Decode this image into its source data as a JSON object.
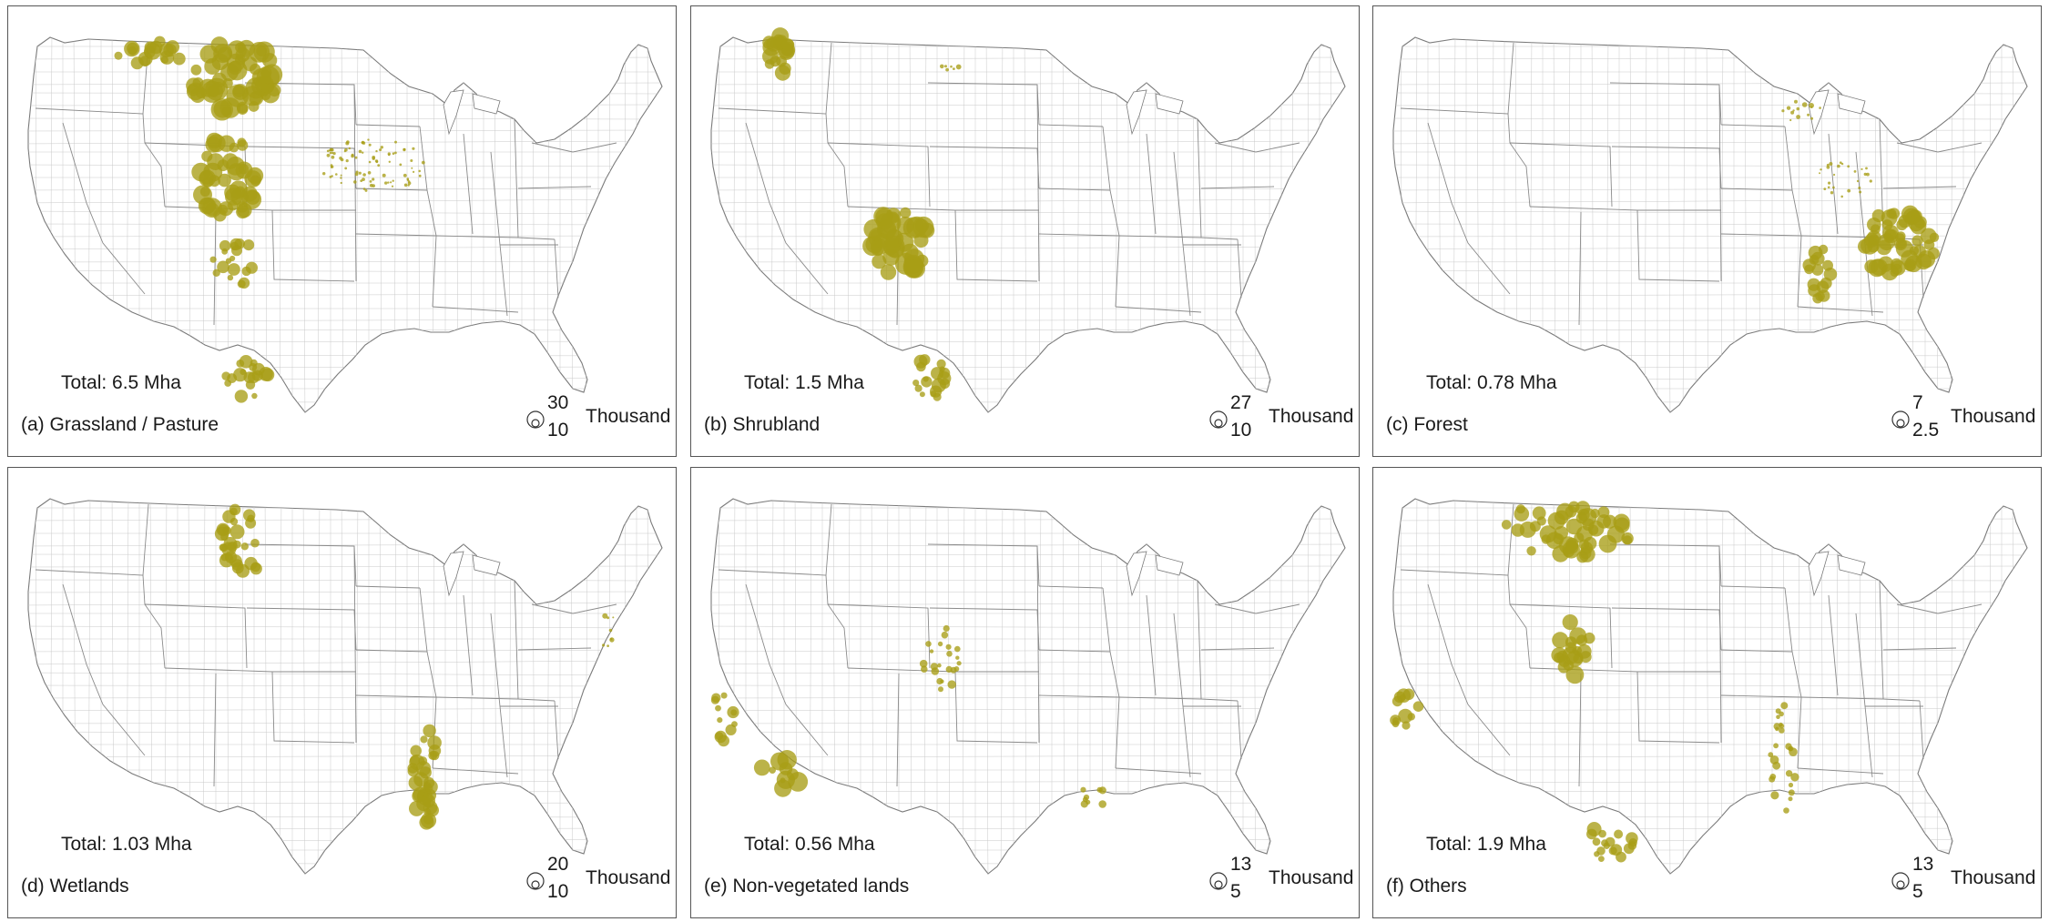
{
  "figure": {
    "marker_color": "#a89d16",
    "panels": [
      {
        "id": "a",
        "caption": "(a) Grassland / Pasture",
        "total": "Total: 6.5 Mha",
        "legend": {
          "max": "30",
          "min": "10",
          "unit": "Thousand ha"
        },
        "clusters": [
          {
            "region": "northern-plains-north-dakota",
            "density": "high"
          },
          {
            "region": "montana-northeast",
            "density": "high"
          },
          {
            "region": "western-kansas-colorado",
            "density": "high"
          },
          {
            "region": "texas-panhandle",
            "density": "medium"
          },
          {
            "region": "south-texas",
            "density": "medium"
          },
          {
            "region": "midwest-east",
            "density": "low"
          }
        ]
      },
      {
        "id": "b",
        "caption": "(b) Shrubland",
        "total": "Total: 1.5 Mha",
        "legend": {
          "max": "27",
          "min": "10",
          "unit": "Thousand ha"
        },
        "clusters": [
          {
            "region": "washington-columbia-basin",
            "density": "high"
          },
          {
            "region": "texas-panhandle-west",
            "density": "high"
          },
          {
            "region": "south-texas",
            "density": "medium"
          },
          {
            "region": "north-dakota",
            "density": "low"
          }
        ]
      },
      {
        "id": "c",
        "caption": "(c) Forest",
        "total": "Total: 0.78 Mha",
        "legend": {
          "max": "7",
          "min": "2.5",
          "unit": "Thousand ha"
        },
        "clusters": [
          {
            "region": "georgia-carolinas-coastal-plain",
            "density": "high"
          },
          {
            "region": "mississippi-alabama",
            "density": "medium"
          },
          {
            "region": "wisconsin-michigan",
            "density": "low"
          },
          {
            "region": "ohio-valley",
            "density": "low"
          }
        ]
      },
      {
        "id": "d",
        "caption": "(d) Wetlands",
        "total": "Total: 1.03 Mha",
        "legend": {
          "max": "20",
          "min": "10",
          "unit": "Thousand ha"
        },
        "clusters": [
          {
            "region": "prairie-pothole-north-dakota",
            "density": "high"
          },
          {
            "region": "mississippi-delta",
            "density": "high"
          },
          {
            "region": "mid-atlantic-coast",
            "density": "low"
          }
        ]
      },
      {
        "id": "e",
        "caption": "(e) Non-vegetated lands",
        "total": "Total: 0.56 Mha",
        "legend": {
          "max": "13",
          "min": "5",
          "unit": "Thousand ha"
        },
        "clusters": [
          {
            "region": "arizona-southwest",
            "density": "medium"
          },
          {
            "region": "california-central-valley",
            "density": "low"
          },
          {
            "region": "colorado-nebraska",
            "density": "low"
          },
          {
            "region": "louisiana-coast",
            "density": "low"
          }
        ]
      },
      {
        "id": "f",
        "caption": "(f) Others",
        "total": "Total: 1.9 Mha",
        "legend": {
          "max": "13",
          "min": "5",
          "unit": "Thousand ha"
        },
        "clusters": [
          {
            "region": "northern-montana-north-dakota",
            "density": "high"
          },
          {
            "region": "eastern-colorado",
            "density": "medium"
          },
          {
            "region": "california-central-valley",
            "density": "medium"
          },
          {
            "region": "mississippi-river",
            "density": "medium"
          },
          {
            "region": "south-texas",
            "density": "low"
          }
        ]
      }
    ]
  }
}
